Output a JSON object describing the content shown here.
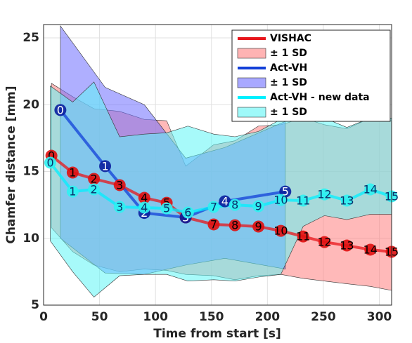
{
  "chart_data": {
    "type": "line",
    "xlabel": "Time from start [s]",
    "ylabel": "Chamfer distance [mm]",
    "xlim": [
      0,
      311
    ],
    "ylim": [
      5,
      26
    ],
    "xticks": [
      0,
      50,
      100,
      150,
      200,
      250,
      300
    ],
    "yticks": [
      5,
      10,
      15,
      20,
      25
    ],
    "grid": true,
    "legend": "upper right",
    "series": [
      {
        "name": "VISHAC",
        "color": "#e8151b",
        "marker_color": "#e01010",
        "text_color": "#000000",
        "band_name": "± 1 SD",
        "band_color": "#ff8080",
        "x": [
          7,
          26,
          45,
          68,
          90,
          110,
          127,
          152,
          171,
          192,
          212,
          232,
          251,
          271,
          292,
          311
        ],
        "values": [
          16.18,
          14.92,
          14.45,
          13.98,
          13.03,
          12.66,
          11.56,
          11.04,
          10.98,
          10.88,
          10.56,
          10.14,
          9.72,
          9.46,
          9.15,
          8.99
        ],
        "point_labels": [
          0,
          1,
          2,
          3,
          4,
          5,
          6,
          7,
          8,
          9,
          10,
          11,
          12,
          13,
          14,
          15
        ],
        "upper": [
          21.6,
          20.6,
          19.7,
          19.5,
          18.9,
          18.8,
          15.4,
          17.0,
          17.3,
          18.4,
          18.5,
          19.0,
          18.5,
          18.2,
          19.0,
          18.8
        ],
        "lower": [
          10.8,
          9.0,
          8.0,
          7.5,
          7.7,
          7.6,
          7.3,
          7.2,
          6.9,
          7.2,
          7.3,
          7.0,
          6.8,
          6.6,
          6.4,
          6.1
        ]
      },
      {
        "name": "Act-VH",
        "color": "#1240d8",
        "marker_color": "#0a1f9e",
        "text_color": "#ffffff",
        "band_name": "± 1 SD",
        "band_color": "#6e6eff",
        "x": [
          15,
          55,
          90,
          127,
          162,
          216
        ],
        "values": [
          19.6,
          15.4,
          11.9,
          11.56,
          12.77,
          13.5
        ],
        "point_labels": [
          0,
          1,
          2,
          3,
          4,
          5
        ],
        "upper": [
          25.9,
          21.3,
          20.0,
          16.0,
          16.8,
          18.75
        ],
        "lower": [
          10.0,
          7.4,
          7.3,
          8.0,
          8.5,
          7.7
        ]
      },
      {
        "name": "Act-VH - new data",
        "color": "#00f0ff",
        "marker_color": "#2ef2f2",
        "text_color": "#08306b",
        "band_name": "± 1 SD",
        "band_color": "#5ff5f5",
        "x": [
          6,
          26,
          45,
          68,
          90,
          110,
          129,
          152,
          171,
          192,
          212,
          232,
          251,
          271,
          292,
          311
        ],
        "values": [
          15.66,
          13.5,
          13.66,
          12.35,
          12.3,
          12.24,
          11.93,
          12.35,
          12.5,
          12.4,
          12.87,
          12.82,
          13.29,
          12.82,
          13.66,
          13.14
        ],
        "point_labels": [
          0,
          1,
          2,
          3,
          4,
          5,
          6,
          7,
          8,
          9,
          10,
          11,
          12,
          13,
          14,
          15
        ],
        "upper": [
          21.4,
          20.2,
          21.7,
          17.6,
          17.8,
          17.9,
          18.4,
          17.8,
          17.6,
          18.0,
          18.9,
          18.9,
          19.0,
          18.3,
          19.0,
          19.0
        ],
        "lower": [
          9.8,
          7.5,
          5.6,
          7.2,
          7.3,
          7.3,
          6.8,
          6.9,
          6.8,
          7.1,
          7.3,
          10.9,
          11.7,
          11.4,
          11.8,
          11.8
        ]
      }
    ]
  }
}
